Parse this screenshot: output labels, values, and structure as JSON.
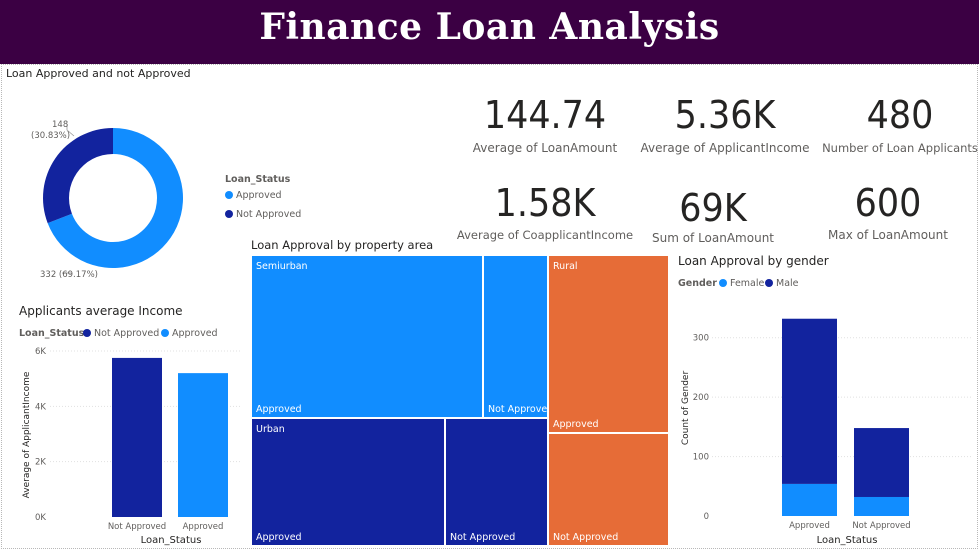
{
  "header": {
    "title": "Finance Loan Analysis"
  },
  "colors": {
    "header_bg": "#3b0043",
    "approved": "#118dff",
    "not_approved": "#12239e",
    "rural": "#e66c37",
    "female": "#118dff",
    "male": "#12239e"
  },
  "donut": {
    "title": "Loan Approved and not Approved",
    "legend_title": "Loan_Status",
    "legend": [
      "Approved",
      "Not Approved"
    ],
    "label_top": "148",
    "label_top_pct": "(30.83%)",
    "label_bottom": "332 (69.17%)",
    "chart_data": {
      "type": "pie",
      "slices": [
        {
          "name": "Approved",
          "value": 332,
          "percent": 69.17
        },
        {
          "name": "Not Approved",
          "value": 148,
          "percent": 30.83
        }
      ]
    }
  },
  "kpis": [
    {
      "value": "144.74",
      "label": "Average of LoanAmount"
    },
    {
      "value": "5.36K",
      "label": "Average of ApplicantIncome"
    },
    {
      "value": "480",
      "label": "Number of Loan Applicants"
    },
    {
      "value": "1.58K",
      "label": "Average of CoapplicantIncome"
    },
    {
      "value": "69K",
      "label": "Sum of LoanAmount"
    },
    {
      "value": "600",
      "label": "Max of LoanAmount"
    }
  ],
  "income": {
    "title": "Applicants average Income",
    "legend_title": "Loan_Status",
    "legend": [
      "Not Approved",
      "Approved"
    ],
    "chart_data": {
      "type": "bar",
      "categories": [
        "Not Approved",
        "Approved"
      ],
      "values": [
        5750,
        5200
      ],
      "ylabel": "Average of ApplicantIncome",
      "xlabel": "Loan_Status",
      "ylim": [
        0,
        6000
      ],
      "ticks": [
        "0K",
        "2K",
        "4K",
        "6K"
      ],
      "tick_values": [
        0,
        2000,
        4000,
        6000
      ]
    }
  },
  "treemap": {
    "title": "Loan Approval by property area",
    "chart_data": {
      "type": "treemap",
      "groups": [
        {
          "name": "Semiurban",
          "children": [
            {
              "name": "Approved",
              "value": 149
            },
            {
              "name": "Not Approved",
              "value": 42
            }
          ]
        },
        {
          "name": "Urban",
          "children": [
            {
              "name": "Approved",
              "value": 98
            },
            {
              "name": "Not Approved",
              "value": 52
            }
          ]
        },
        {
          "name": "Rural",
          "children": [
            {
              "name": "Approved",
              "value": 85
            },
            {
              "name": "Not Approved",
              "value": 54
            }
          ]
        }
      ]
    }
  },
  "gender": {
    "title": "Loan Approval by gender",
    "legend_title": "Gender",
    "legend": [
      "Female",
      "Male"
    ],
    "chart_data": {
      "type": "bar",
      "stacked": true,
      "categories": [
        "Approved",
        "Not Approved"
      ],
      "series": [
        {
          "name": "Female",
          "values": [
            54,
            32
          ]
        },
        {
          "name": "Male",
          "values": [
            278,
            116
          ]
        }
      ],
      "ylabel": "Count of Gender",
      "xlabel": "Loan_Status",
      "ylim": [
        0,
        345
      ],
      "ticks": [
        "0",
        "100",
        "200",
        "300"
      ],
      "tick_values": [
        0,
        100,
        200,
        300
      ]
    }
  }
}
